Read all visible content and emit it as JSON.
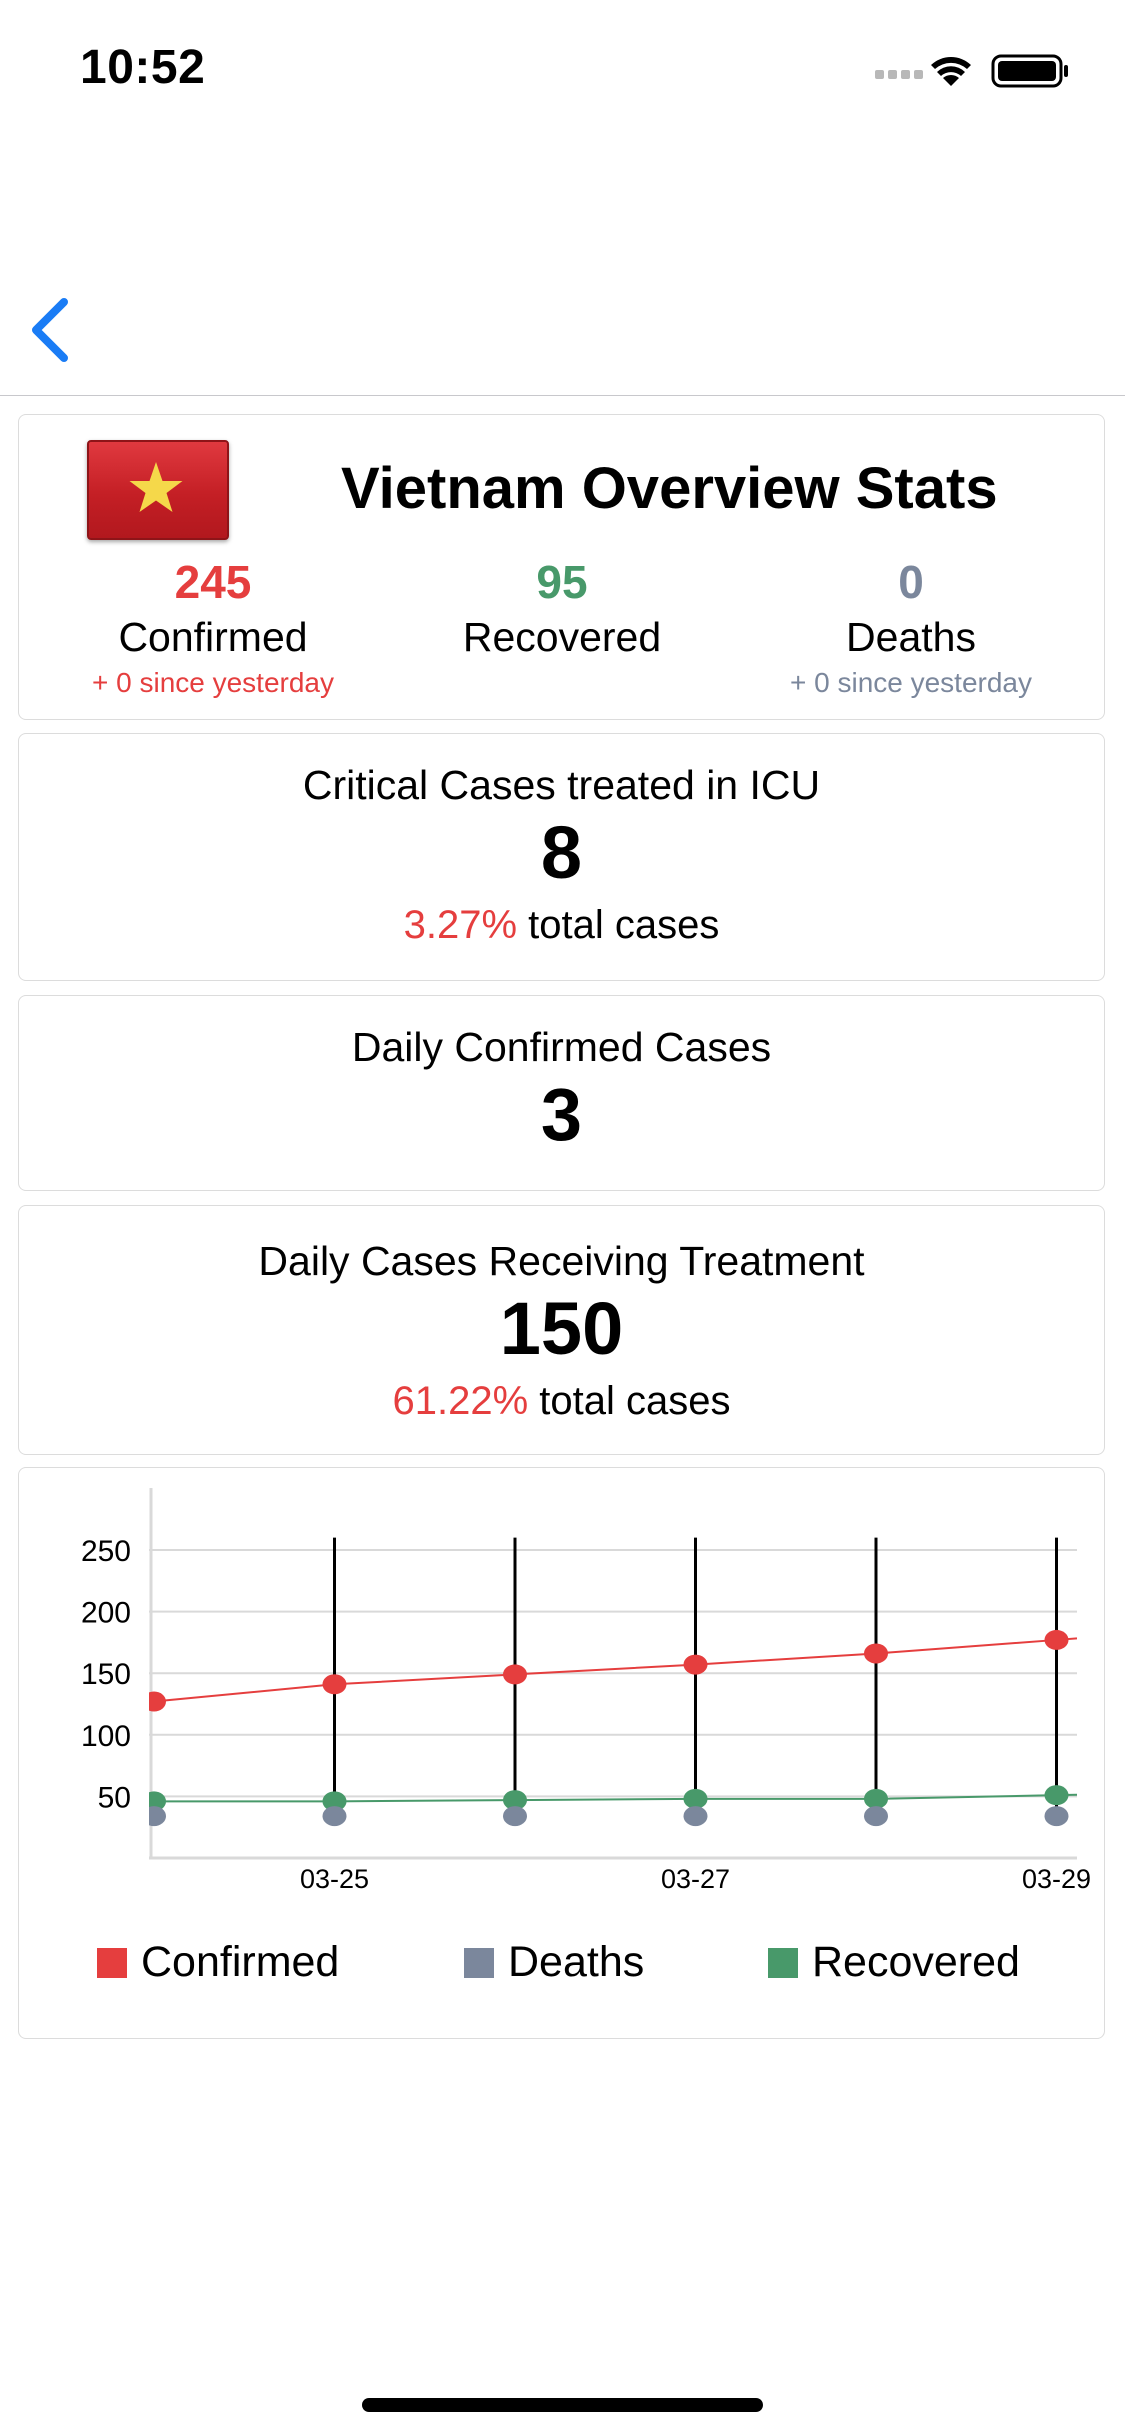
{
  "status_bar": {
    "time": "10:52"
  },
  "overview": {
    "title": "Vietnam Overview Stats",
    "confirmed": {
      "value": "245",
      "label": "Confirmed",
      "since": "+ 0 since yesterday"
    },
    "recovered": {
      "value": "95",
      "label": "Recovered"
    },
    "deaths": {
      "value": "0",
      "label": "Deaths",
      "since": "+ 0 since yesterday"
    }
  },
  "critical": {
    "title": "Critical Cases treated in ICU",
    "value": "8",
    "pct": "3.27%",
    "suffix": "total cases"
  },
  "daily_confirmed": {
    "title": "Daily Confirmed Cases",
    "value": "3"
  },
  "treatment": {
    "title": "Daily Cases Receiving Treatment",
    "value": "150",
    "pct": "61.22%",
    "suffix": "total cases"
  },
  "colors": {
    "confirmed": "#e53e3e",
    "deaths": "#7b879c",
    "recovered": "#48996a",
    "accent": "#1a7cf5"
  },
  "chart_data": {
    "type": "line",
    "x": [
      "03-24",
      "03-25",
      "03-26",
      "03-27",
      "03-28",
      "03-29"
    ],
    "x_tick_labels": [
      "03-25",
      "03-27",
      "03-29"
    ],
    "y_ticks": [
      50,
      100,
      150,
      200,
      250
    ],
    "ylim": [
      0,
      260
    ],
    "grid": true,
    "legend_position": "bottom",
    "series": [
      {
        "name": "Confirmed",
        "color": "#e53e3e",
        "values": [
          127,
          141,
          149,
          157,
          166,
          177
        ]
      },
      {
        "name": "Deaths",
        "color": "#7b879c",
        "values": [
          34,
          34,
          34,
          34,
          34,
          34
        ]
      },
      {
        "name": "Recovered",
        "color": "#48996a",
        "values": [
          46,
          46,
          47,
          48,
          48,
          51
        ]
      }
    ]
  }
}
